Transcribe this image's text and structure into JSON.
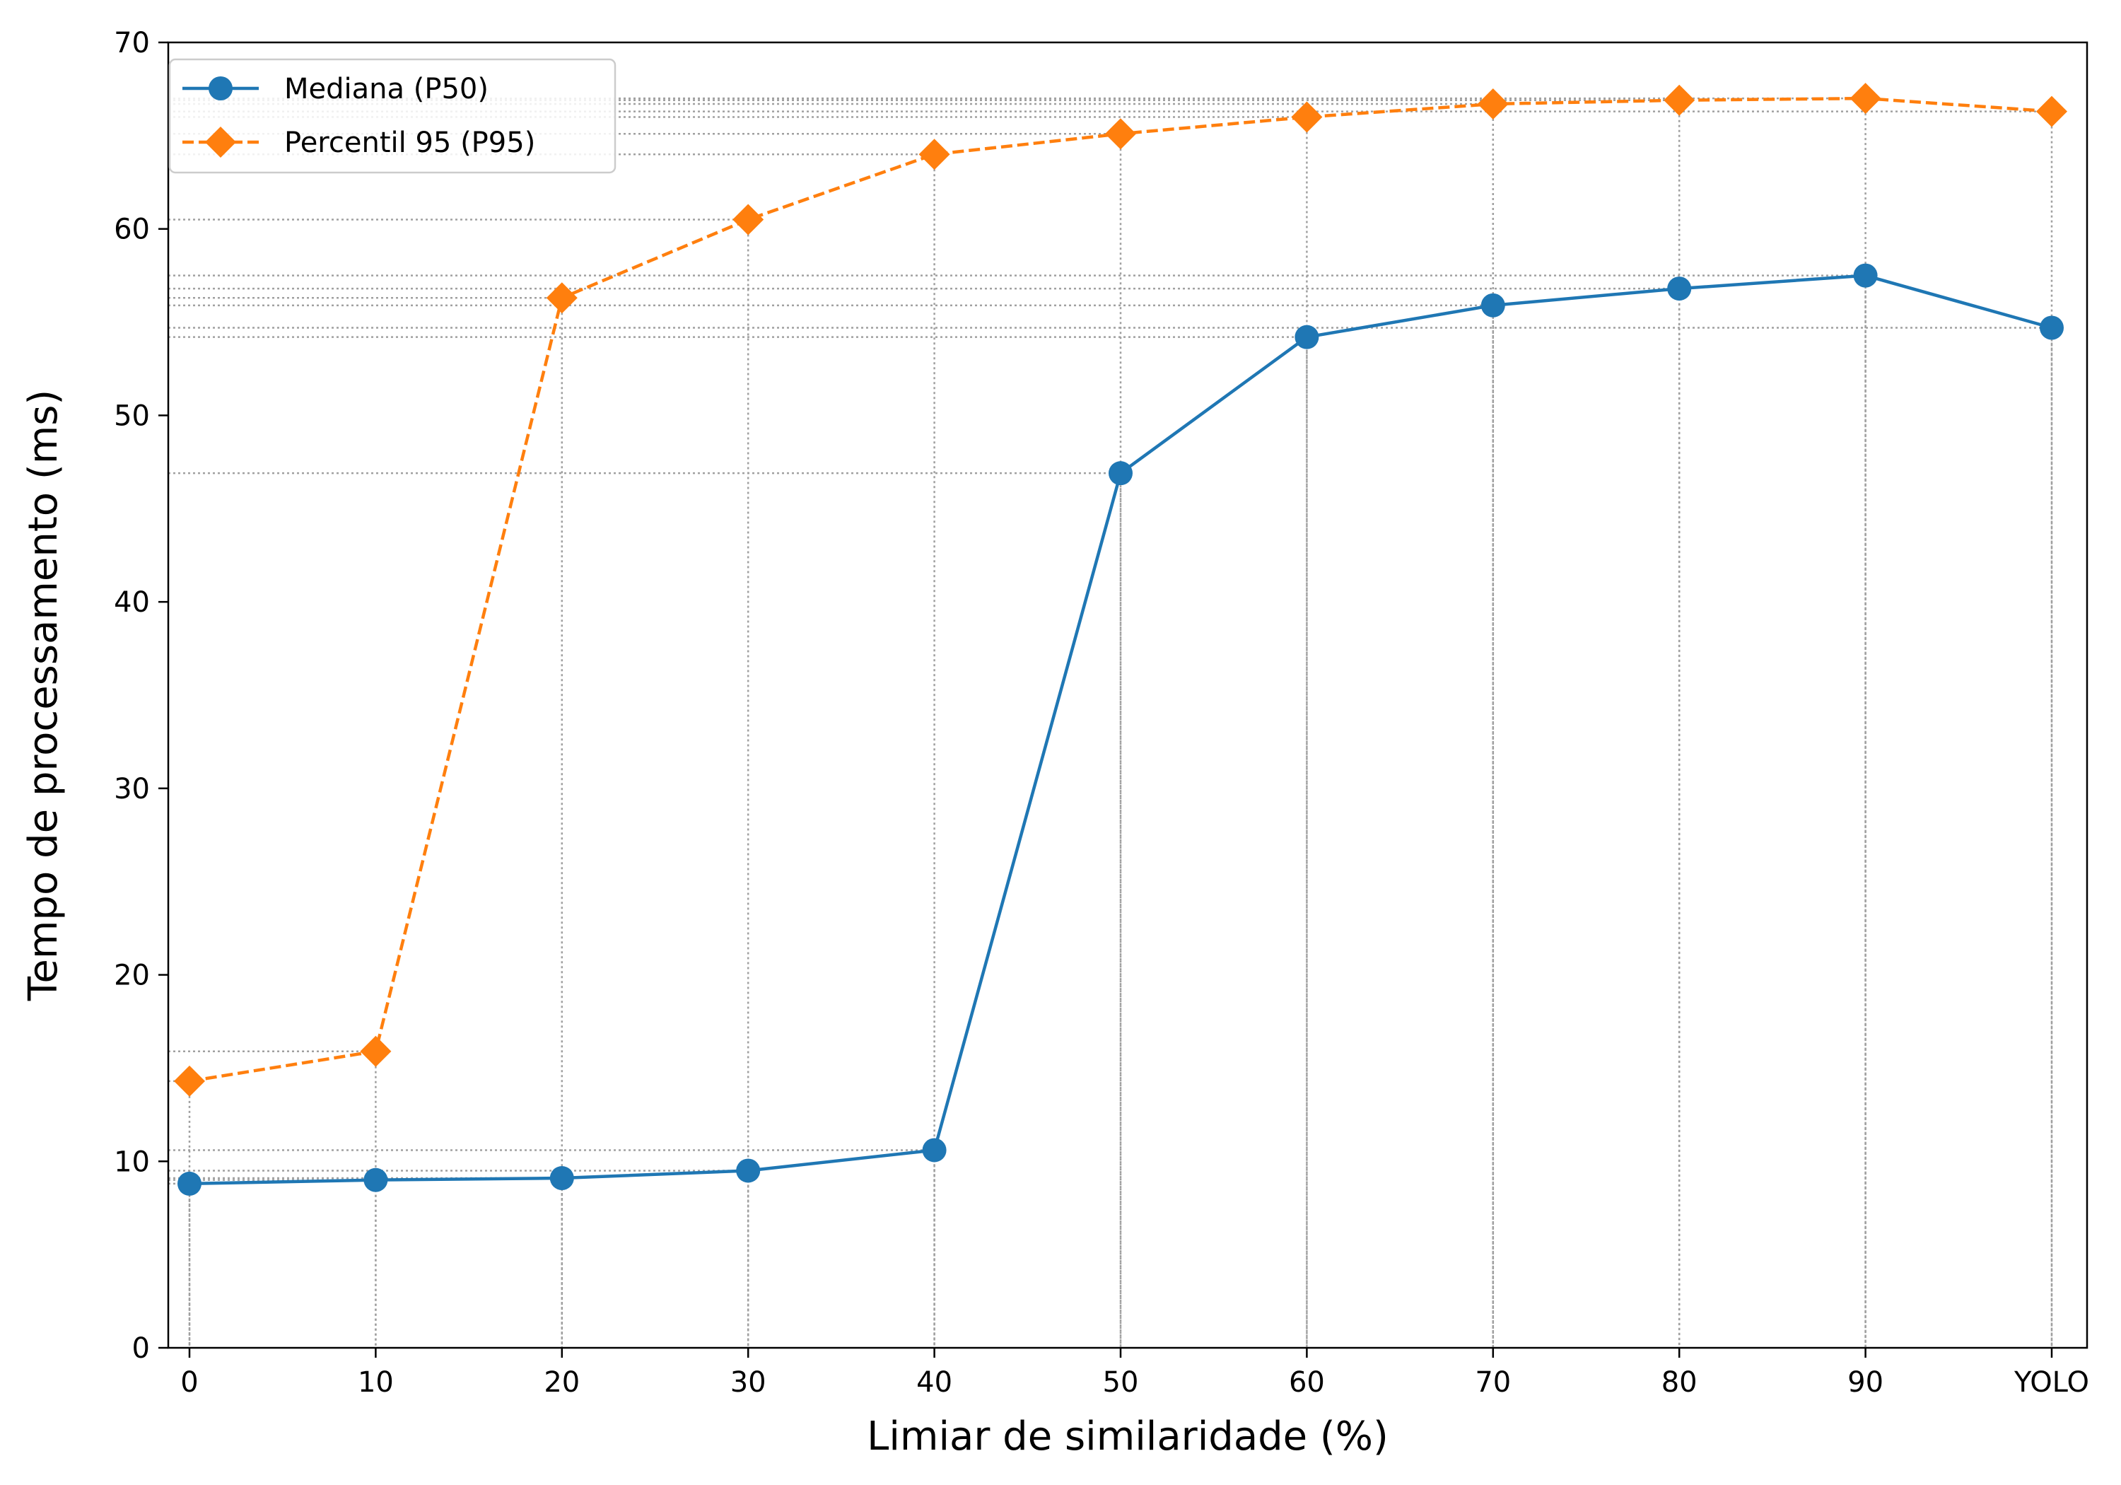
{
  "chart_data": {
    "type": "line",
    "title": "",
    "xlabel": "Limiar de similaridade (%)",
    "ylabel": "Tempo de processamento (ms)",
    "categories": [
      "0",
      "10",
      "20",
      "30",
      "40",
      "50",
      "60",
      "70",
      "80",
      "90",
      "YOLO"
    ],
    "ylim": [
      0,
      70
    ],
    "yticks": [
      "0",
      "10",
      "20",
      "30",
      "40",
      "50",
      "60",
      "70"
    ],
    "grid": "dotted guide lines from each data point to both axes",
    "legend_position": "top-left",
    "series": [
      {
        "name": "Mediana (P50)",
        "color": "#1f77b4",
        "marker": "circle",
        "linestyle": "solid",
        "values": [
          8.8,
          9.0,
          9.1,
          9.5,
          10.6,
          46.9,
          54.2,
          55.9,
          56.8,
          57.5,
          54.7
        ]
      },
      {
        "name": "Percentil 95 (P95)",
        "color": "#ff7f0e",
        "marker": "diamond",
        "linestyle": "dashed",
        "values": [
          14.3,
          15.9,
          56.3,
          60.5,
          64.0,
          65.1,
          66.0,
          66.7,
          66.9,
          67.0,
          66.3
        ]
      }
    ]
  }
}
